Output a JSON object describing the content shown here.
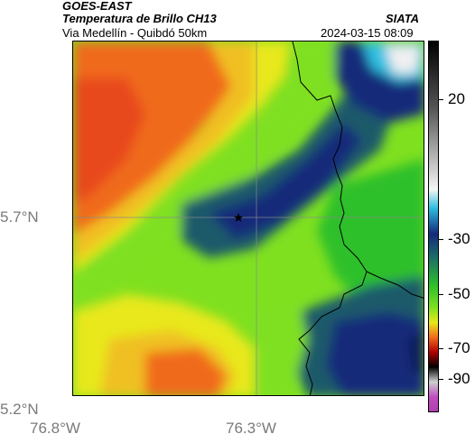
{
  "header": {
    "satellite": "GOES-EAST",
    "product": "Temperatura de Brillo CH13",
    "org": "SIATA",
    "route": "Via Medellín - Quibdó 50km",
    "timestamp": "2024-03-15 08:09"
  },
  "axes": {
    "x_ticks": [
      "76.8°W",
      "76.3°W"
    ],
    "y_ticks": [
      "5.7°N",
      "5.2°N"
    ]
  },
  "colorbar": {
    "ticks": [
      "20",
      "-30",
      "-50",
      "-70",
      "-90"
    ]
  },
  "map": {
    "marker": "star-marker"
  },
  "colors": {
    "orange": "#f06a1e",
    "red_orange": "#e84a1a",
    "yellow": "#e8e81a",
    "green_light": "#7fe020",
    "green": "#2ec02a",
    "teal": "#1f8a6a",
    "dark_teal": "#1a5a6a",
    "navy": "#142a7a",
    "cyan": "#30c0e0",
    "white": "#f0f0f0"
  }
}
